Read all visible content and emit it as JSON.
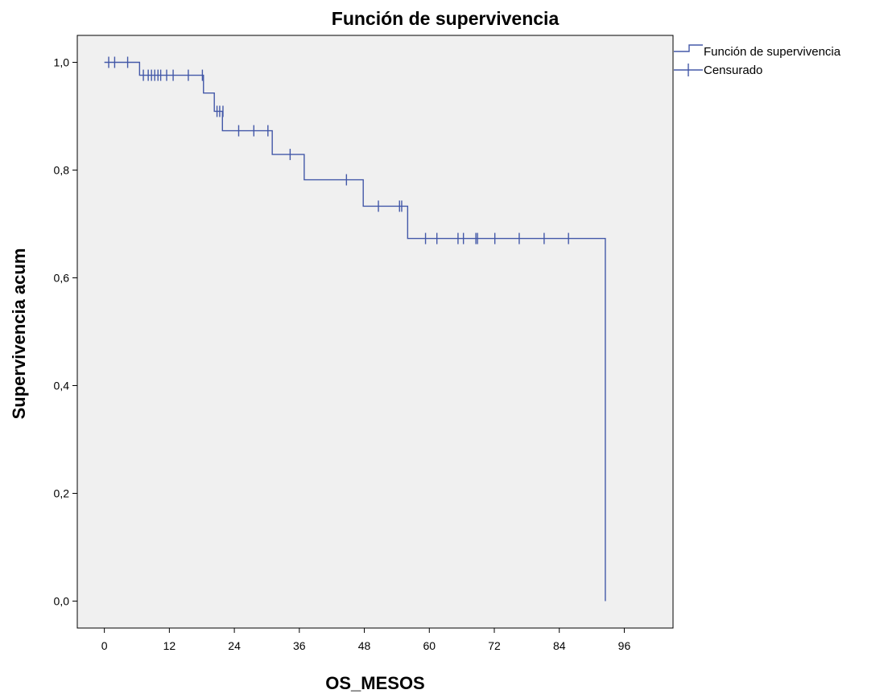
{
  "chart_data": {
    "type": "line",
    "title": "Función de supervivencia",
    "xlabel": "OS_MESOS",
    "ylabel": "Supervivencia acum",
    "xlim": [
      -5,
      105
    ],
    "ylim": [
      -0.05,
      1.05
    ],
    "x_ticks": [
      0,
      12,
      24,
      36,
      48,
      60,
      72,
      84,
      96
    ],
    "x_tick_labels": [
      "0",
      "12",
      "24",
      "36",
      "48",
      "60",
      "72",
      "84",
      "96"
    ],
    "y_ticks": [
      0.0,
      0.2,
      0.4,
      0.6,
      0.8,
      1.0
    ],
    "y_tick_labels": [
      "0,0",
      "0,2",
      "0,4",
      "0,6",
      "0,8",
      "1,0"
    ],
    "grid": false,
    "legend_position": "top-right, outside plot",
    "colors": {
      "series": "#4358a8",
      "plot_background": "#f0f0f0",
      "frame": "#000000"
    },
    "series": [
      {
        "name": "Función de supervivencia",
        "kind": "step",
        "x": [
          0,
          6.5,
          18.3,
          20.3,
          21.8,
          31,
          36.9,
          47.8,
          56,
          92.5,
          92.5
        ],
        "y": [
          1.0,
          0.976,
          0.943,
          0.909,
          0.873,
          0.829,
          0.782,
          0.733,
          0.673,
          0.673,
          0.0
        ]
      },
      {
        "name": "Censurado",
        "kind": "censor_marks",
        "x": [
          0.8,
          1.9,
          4.3,
          7.2,
          8.1,
          8.7,
          9.3,
          9.9,
          10.4,
          11.5,
          12.7,
          15.5,
          18.1,
          20.8,
          21.3,
          21.9,
          24.8,
          27.6,
          30.2,
          34.3,
          44.7,
          50.6,
          54.5,
          54.9,
          59.3,
          61.4,
          65.3,
          66.3,
          68.6,
          68.9,
          72.1,
          76.6,
          81.2,
          85.7
        ],
        "y": [
          1.0,
          1.0,
          1.0,
          0.976,
          0.976,
          0.976,
          0.976,
          0.976,
          0.976,
          0.976,
          0.976,
          0.976,
          0.976,
          0.909,
          0.909,
          0.909,
          0.873,
          0.873,
          0.873,
          0.829,
          0.782,
          0.733,
          0.733,
          0.733,
          0.673,
          0.673,
          0.673,
          0.673,
          0.673,
          0.673,
          0.673,
          0.673,
          0.673,
          0.673
        ]
      }
    ],
    "legend": [
      {
        "label": "Función de supervivencia",
        "symbol": "step"
      },
      {
        "label": "Censurado",
        "symbol": "cross"
      }
    ]
  }
}
